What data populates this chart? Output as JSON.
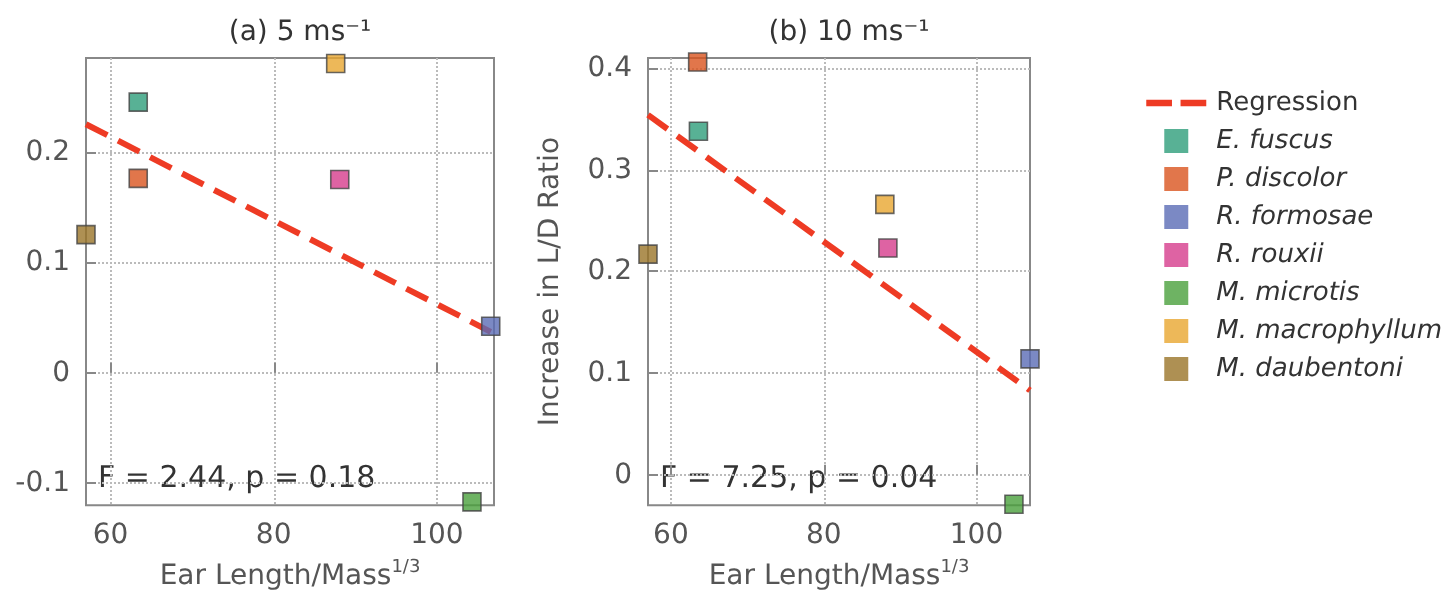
{
  "chart_data": [
    {
      "type": "scatter",
      "title": "(a) 5 ms⁻¹",
      "xlabel": "Ear Length/Mass$^{1/3}$",
      "xlim": [
        57,
        107
      ],
      "ylim": [
        -0.12,
        0.285
      ],
      "xticks": [
        60,
        80,
        100
      ],
      "yticks": [
        -0.1,
        0,
        0.1,
        0.2
      ],
      "grid": true,
      "marker": "square",
      "legend": false,
      "annotations": [
        "F = 2.44, p = 0.18"
      ],
      "series": [
        {
          "type": "line",
          "line_style": "dashed",
          "marker": "none",
          "color": "#ee3b24",
          "x": [
            57,
            106.6
          ],
          "values": [
            0.225,
            0.037
          ]
        },
        {
          "color": "#2e9e7a",
          "x": [
            63.4
          ],
          "values": [
            0.245
          ]
        },
        {
          "color": "#d9541e",
          "x": [
            63.4
          ],
          "values": [
            0.176
          ]
        },
        {
          "color": "#5a6bb5",
          "x": [
            106.6
          ],
          "values": [
            0.042
          ]
        },
        {
          "color": "#d63c8c",
          "x": [
            88.1
          ],
          "values": [
            0.175
          ]
        },
        {
          "color": "#4aa03c",
          "x": [
            104.3
          ],
          "values": [
            -0.117
          ]
        },
        {
          "color": "#e8a630",
          "x": [
            87.6
          ],
          "values": [
            0.28
          ]
        },
        {
          "color": "#9a7428",
          "x": [
            57
          ],
          "values": [
            0.125
          ]
        }
      ]
    },
    {
      "type": "scatter",
      "title": "(b) 10 ms⁻¹",
      "xlabel": "Ear Length/Mass$^{1/3}$",
      "ylabel": "Increase in L/D Ratio",
      "xlim": [
        57,
        107
      ],
      "ylim": [
        -0.03,
        0.41
      ],
      "xticks": [
        60,
        80,
        100
      ],
      "yticks": [
        0,
        0.1,
        0.2,
        0.3,
        0.4
      ],
      "grid": true,
      "marker": "square",
      "legend": "right",
      "annotations": [
        "F = 7.25, p = 0.04"
      ],
      "series": [
        {
          "type": "line",
          "name": "Regression",
          "line_style": "dashed",
          "marker": "none",
          "color": "#ee3b24",
          "x": [
            57,
            107
          ],
          "values": [
            0.354,
            0.083
          ]
        },
        {
          "name": "E. fuscus",
          "color": "#2e9e7a",
          "x": [
            63.6
          ],
          "values": [
            0.338
          ]
        },
        {
          "name": "P. discolor",
          "color": "#d9541e",
          "x": [
            63.5
          ],
          "values": [
            0.406
          ]
        },
        {
          "name": "R. formosae",
          "color": "#5a6bb5",
          "x": [
            107
          ],
          "values": [
            0.114
          ]
        },
        {
          "name": "R. rouxii",
          "color": "#d63c8c",
          "x": [
            88.4
          ],
          "values": [
            0.223
          ]
        },
        {
          "name": "M. microtis",
          "color": "#4aa03c",
          "x": [
            104.9
          ],
          "values": [
            -0.029
          ]
        },
        {
          "name": "M. macrophyllum",
          "color": "#e8a630",
          "x": [
            88
          ],
          "values": [
            0.266
          ]
        },
        {
          "name": "M. daubentoni",
          "color": "#9a7428",
          "x": [
            57
          ],
          "values": [
            0.217
          ]
        }
      ]
    }
  ]
}
